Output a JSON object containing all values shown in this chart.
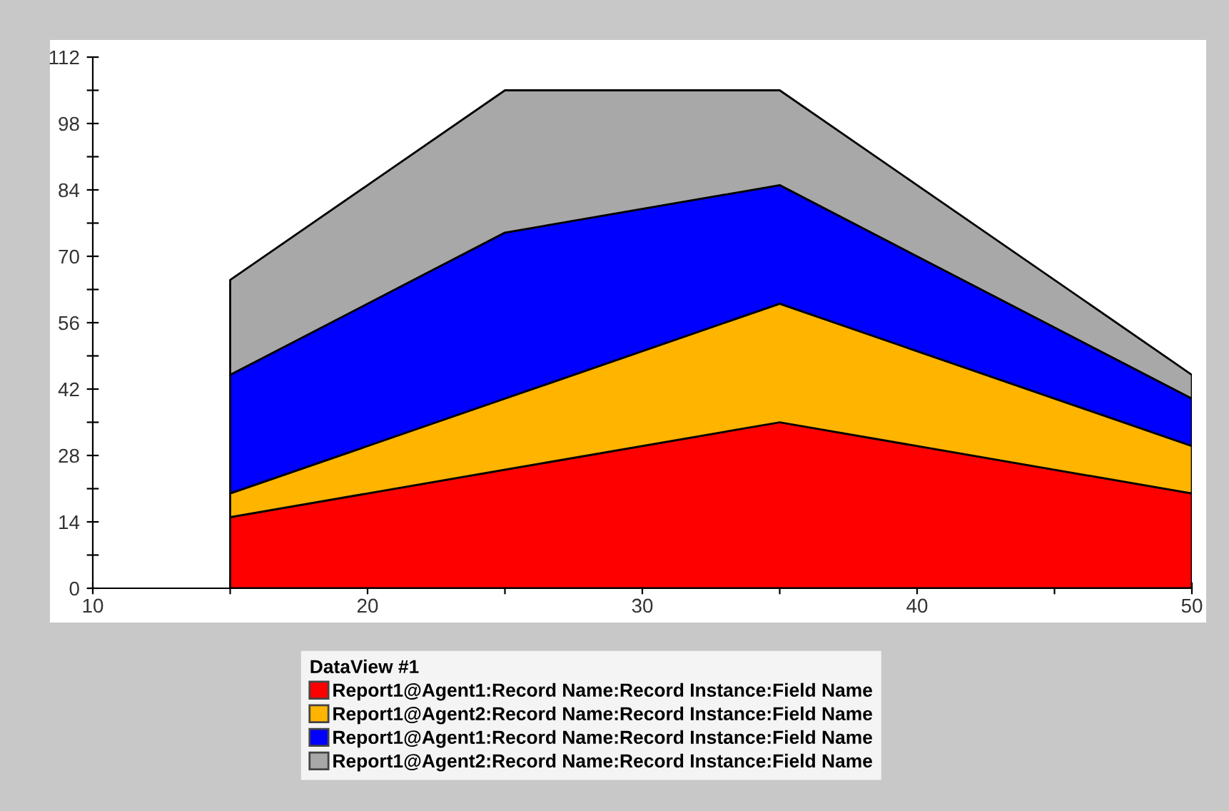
{
  "chart_data": {
    "type": "area",
    "stacked": true,
    "legend_title": "DataView #1",
    "legend": "bottom",
    "grid": false,
    "x": [
      15,
      25,
      35,
      50
    ],
    "series": [
      {
        "name": "Report1@Agent1:Record Name:Record Instance:Field Name",
        "color": "#ff0000",
        "values": [
          15,
          25,
          35,
          20
        ]
      },
      {
        "name": "Report1@Agent2:Record Name:Record Instance:Field Name",
        "color": "#ffb400",
        "values": [
          5,
          15,
          25,
          10
        ]
      },
      {
        "name": "Report1@Agent1:Record Name:Record Instance:Field Name",
        "color": "#0000ff",
        "values": [
          25,
          35,
          25,
          10
        ]
      },
      {
        "name": "Report1@Agent2:Record Name:Record Instance:Field Name",
        "color": "#a8a8a8",
        "values": [
          20,
          30,
          20,
          5
        ]
      }
    ],
    "xlim": [
      10,
      50
    ],
    "ylim": [
      0,
      112
    ],
    "xticks": [
      10,
      {
        "value": 15,
        "label": null
      },
      20,
      {
        "value": 25,
        "label": null
      },
      30,
      {
        "value": 35,
        "label": null
      },
      40,
      {
        "value": 45,
        "label": null
      },
      50
    ],
    "yticks": [
      0,
      {
        "value": 7,
        "label": null
      },
      14,
      {
        "value": 21,
        "label": null
      },
      28,
      {
        "value": 35,
        "label": null
      },
      42,
      {
        "value": 49,
        "label": null
      },
      56,
      {
        "value": 63,
        "label": null
      },
      70,
      {
        "value": 77,
        "label": null
      },
      84,
      {
        "value": 91,
        "label": null
      },
      98,
      {
        "value": 105,
        "label": null
      },
      112
    ]
  }
}
